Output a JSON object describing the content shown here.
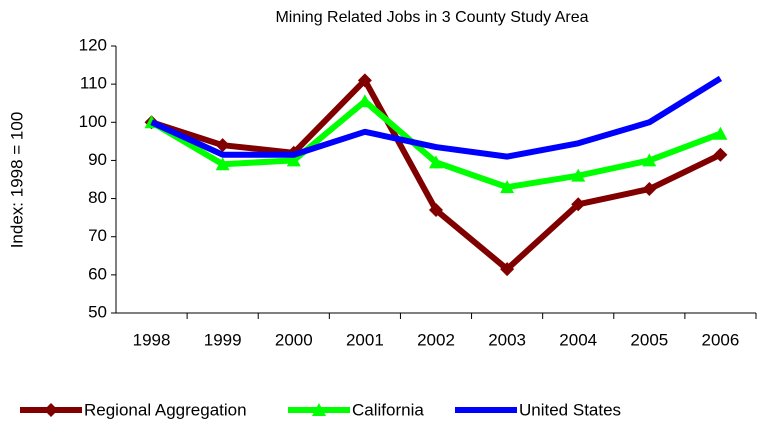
{
  "chart_data": {
    "type": "line",
    "title": "Mining Related Jobs in 3 County Study Area",
    "y_label": "Index: 1998 = 100",
    "categories": [
      "1998",
      "1999",
      "2000",
      "2001",
      "2002",
      "2003",
      "2004",
      "2005",
      "2006"
    ],
    "series": [
      {
        "name": "Regional Aggregation",
        "color": "#800000",
        "marker": "diamond",
        "values": [
          100,
          94,
          92,
          111,
          77,
          61.5,
          78.5,
          82.5,
          91.5
        ]
      },
      {
        "name": "California",
        "color": "#00ff00",
        "marker": "triangle",
        "values": [
          100,
          89,
          90,
          105.5,
          89.5,
          83,
          86,
          90,
          97
        ]
      },
      {
        "name": "United States",
        "color": "#0000ff",
        "marker": "none",
        "values": [
          100,
          91.5,
          91.5,
          97.5,
          93.5,
          91,
          94.5,
          100,
          111.5
        ]
      }
    ],
    "ylim": [
      50,
      120
    ],
    "yticks": [
      50,
      60,
      70,
      80,
      90,
      100,
      110,
      120
    ],
    "grid": false,
    "legend": "bottom"
  }
}
